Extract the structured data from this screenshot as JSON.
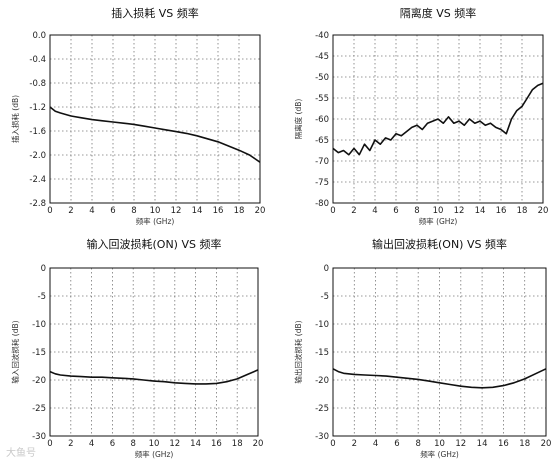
{
  "chart_data": [
    {
      "type": "line",
      "title": "插入损耗 VS 频率",
      "xlabel": "频率 (GHz)",
      "ylabel": "插入损耗 (dB)",
      "xlim": [
        0,
        20
      ],
      "ylim": [
        -2.8,
        0.0
      ],
      "xticks": [
        "0",
        "2",
        "4",
        "6",
        "8",
        "10",
        "12",
        "14",
        "16",
        "18",
        "20"
      ],
      "yticks": [
        "0.0",
        "-0.4",
        "-0.8",
        "-1.2",
        "-1.6",
        "-2.0",
        "-2.4",
        "-2.8"
      ],
      "grid": true,
      "series": [
        {
          "x": [
            0,
            0.5,
            1,
            2,
            3,
            4,
            5,
            6,
            7,
            8,
            9,
            10,
            11,
            12,
            13,
            14,
            15,
            16,
            17,
            18,
            19,
            19.5,
            20
          ],
          "y": [
            -1.2,
            -1.27,
            -1.3,
            -1.35,
            -1.38,
            -1.41,
            -1.43,
            -1.45,
            -1.47,
            -1.49,
            -1.52,
            -1.55,
            -1.58,
            -1.61,
            -1.64,
            -1.68,
            -1.73,
            -1.78,
            -1.85,
            -1.92,
            -2.0,
            -2.06,
            -2.12
          ]
        }
      ]
    },
    {
      "type": "line",
      "title": "隔离度 VS 频率",
      "xlabel": "频率 (GHz)",
      "ylabel": "隔离度 (dB)",
      "xlim": [
        0,
        20
      ],
      "ylim": [
        -80,
        -40
      ],
      "xticks": [
        "0",
        "2",
        "4",
        "6",
        "8",
        "10",
        "12",
        "14",
        "16",
        "18",
        "20"
      ],
      "yticks": [
        "-40",
        "-45",
        "-50",
        "-55",
        "-60",
        "-65",
        "-70",
        "-75",
        "-80"
      ],
      "grid": true,
      "series": [
        {
          "x": [
            0,
            0.5,
            1,
            1.5,
            2,
            2.5,
            3,
            3.5,
            4,
            4.5,
            5,
            5.5,
            6,
            6.5,
            7,
            7.5,
            8,
            8.5,
            9,
            9.5,
            10,
            10.5,
            11,
            11.5,
            12,
            12.5,
            13,
            13.5,
            14,
            14.5,
            15,
            15.5,
            16,
            16.5,
            17,
            17.5,
            18,
            18.5,
            19,
            19.5,
            20
          ],
          "y": [
            -67,
            -68,
            -67.5,
            -68.5,
            -67,
            -68.5,
            -66,
            -67.5,
            -65,
            -66,
            -64.5,
            -65,
            -63.5,
            -64,
            -63,
            -62,
            -61.5,
            -62.5,
            -61,
            -60.5,
            -60,
            -61,
            -59.5,
            -61,
            -60.5,
            -61.5,
            -60,
            -61,
            -60.5,
            -61.5,
            -61,
            -62,
            -62.5,
            -63.5,
            -60,
            -58,
            -57,
            -55,
            -53,
            -52,
            -51.5
          ]
        }
      ]
    },
    {
      "type": "line",
      "title": "输入回波损耗(ON) VS 频率",
      "xlabel": "频率 (GHz)",
      "ylabel": "输入回波损耗 (dB)",
      "xlim": [
        0,
        20
      ],
      "ylim": [
        -30,
        0
      ],
      "xticks": [
        "0",
        "2",
        "4",
        "6",
        "8",
        "10",
        "12",
        "14",
        "16",
        "18",
        "20"
      ],
      "yticks": [
        "0",
        "-5",
        "-10",
        "-15",
        "-20",
        "-25",
        "-30"
      ],
      "grid": true,
      "series": [
        {
          "x": [
            0,
            0.5,
            1,
            2,
            3,
            4,
            5,
            6,
            7,
            8,
            9,
            10,
            11,
            12,
            13,
            14,
            15,
            16,
            17,
            18,
            19,
            20
          ],
          "y": [
            -18.5,
            -18.9,
            -19.1,
            -19.3,
            -19.4,
            -19.5,
            -19.5,
            -19.6,
            -19.7,
            -19.8,
            -20.0,
            -20.2,
            -20.3,
            -20.5,
            -20.6,
            -20.7,
            -20.7,
            -20.6,
            -20.3,
            -19.8,
            -19.0,
            -18.2
          ]
        }
      ]
    },
    {
      "type": "line",
      "title": "输出回波损耗(ON) VS 频率",
      "xlabel": "频率 (GHz)",
      "ylabel": "输出回波损耗 (dB)",
      "xlim": [
        0,
        20
      ],
      "ylim": [
        -30,
        0
      ],
      "xticks": [
        "0",
        "2",
        "4",
        "6",
        "8",
        "10",
        "12",
        "14",
        "16",
        "18",
        "20"
      ],
      "yticks": [
        "0",
        "-5",
        "-10",
        "-15",
        "-20",
        "-25",
        "-30"
      ],
      "grid": true,
      "series": [
        {
          "x": [
            0,
            0.5,
            1,
            2,
            3,
            4,
            5,
            6,
            7,
            8,
            9,
            10,
            11,
            12,
            13,
            14,
            15,
            16,
            17,
            18,
            19,
            20
          ],
          "y": [
            -18.0,
            -18.5,
            -18.8,
            -19.0,
            -19.1,
            -19.2,
            -19.3,
            -19.5,
            -19.7,
            -19.9,
            -20.2,
            -20.5,
            -20.8,
            -21.1,
            -21.3,
            -21.4,
            -21.3,
            -21.0,
            -20.5,
            -19.8,
            -18.9,
            -18.0
          ]
        }
      ]
    }
  ],
  "watermark": "大鱼号"
}
